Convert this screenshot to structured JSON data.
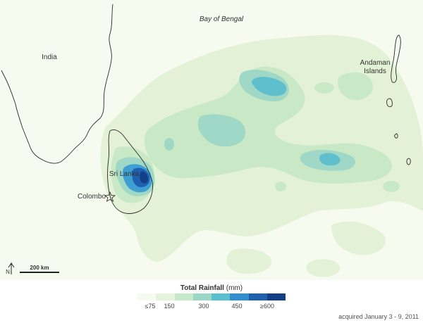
{
  "map": {
    "labels": {
      "bay": "Bay of Bengal",
      "india": "India",
      "andaman_line1": "Andaman",
      "andaman_line2": "Islands",
      "srilanka": "Sri Lanka",
      "colombo": "Colombo"
    },
    "scale_bar_label": "200 km",
    "north_arrow_label": "N",
    "icons": [
      "north-arrow-icon",
      "star-icon"
    ]
  },
  "legend": {
    "title": "Total Rainfall",
    "unit": "(mm)",
    "ticks": [
      "≤75",
      "150",
      "300",
      "450",
      "≥600"
    ],
    "colors": [
      "#f5fbee",
      "#e4f3d9",
      "#c6e9c8",
      "#9ad7c6",
      "#5cbfcd",
      "#2f8fcf",
      "#1f5fae",
      "#143f86"
    ]
  },
  "acquired": "acquired January 3 - 9, 2011"
}
